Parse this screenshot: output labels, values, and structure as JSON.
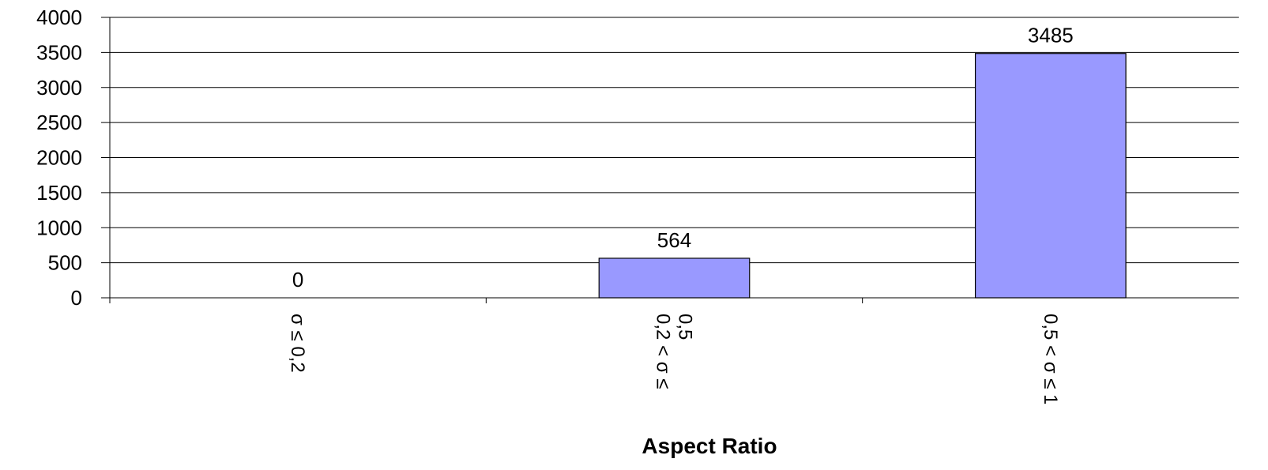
{
  "chart_data": {
    "type": "bar",
    "title": "",
    "xlabel": "Aspect Ratio",
    "ylabel": "",
    "categories": [
      [
        "σ ≤ 0,2"
      ],
      [
        "0,2 < σ ≤",
        "0,5"
      ],
      [
        "0,5 < σ ≤ 1"
      ]
    ],
    "values": [
      0,
      564,
      3485
    ],
    "data_labels": [
      "0",
      "564",
      "3485"
    ],
    "ylim": [
      0,
      4000
    ],
    "yticks": [
      0,
      500,
      1000,
      1500,
      2000,
      2500,
      3000,
      3500,
      4000
    ],
    "ytick_labels": [
      "0",
      "500",
      "1000",
      "1500",
      "2000",
      "2500",
      "3000",
      "3500",
      "4000"
    ],
    "grid": true,
    "legend": "none",
    "colors": {
      "bar_fill": "#9999FF",
      "bar_stroke": "#000000",
      "gridline": "#000000",
      "axis": "#000000",
      "background": "#FFFFFF"
    }
  }
}
